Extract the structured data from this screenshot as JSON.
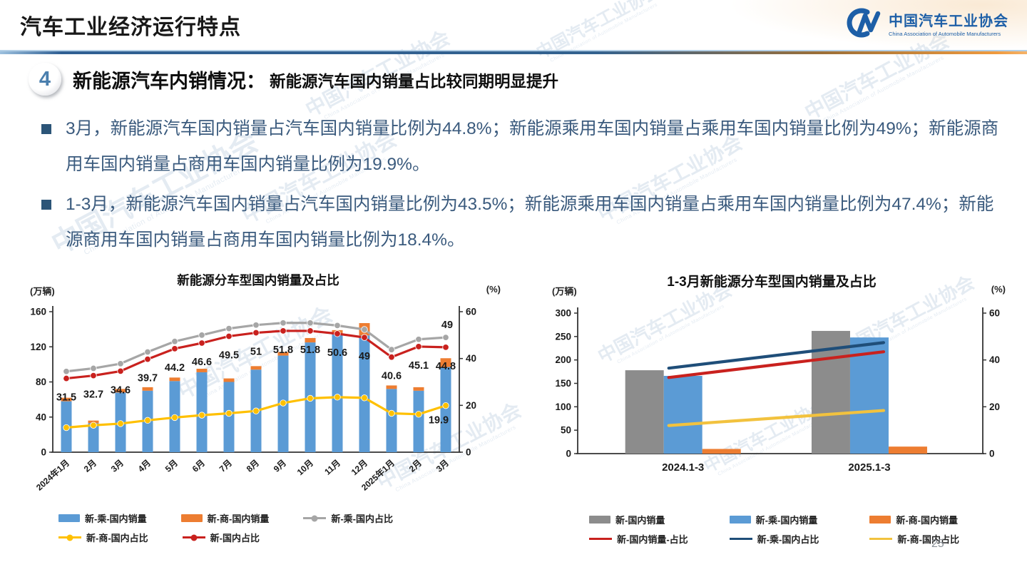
{
  "page": {
    "title": "汽车工业经济运行特点",
    "page_number": "25"
  },
  "logo": {
    "name_cn": "中国汽车工业协会",
    "name_en": "China Association of Automobile Manufacturers"
  },
  "watermark": {
    "text": "中国汽车工业协会",
    "subtext": "China Association of Automobile Manufacturers"
  },
  "section": {
    "number": "4",
    "heading": "新能源汽车内销情况：",
    "subheading": "新能源汽车国内销量占比较同期明显提升"
  },
  "bullets": [
    "3月，新能源汽车国内销量占汽车国内销量比例为44.8%；新能源乘用车国内销量占乘用车国内销量比例为49%；新能源商用车国内销量占商用车国内销量比例为19.9%。",
    "1-3月，新能源汽车国内销量占汽车国内销量比例为43.5%；新能源乘用车国内销量占乘用车国内销量比例为47.4%；新能源商用车国内销量占商用车国内销量比例为18.4%。"
  ],
  "colors": {
    "bar_blue": "#5b9bd5",
    "bar_orange": "#ed7d31",
    "bar_gray": "#8c8c8c",
    "line_gray": "#a6a6a6",
    "line_yellow": "#ffc000",
    "line_red": "#c9211e",
    "line_darkblue": "#1f4e79",
    "divider_blue": "#2f5f93",
    "divider_orange": "#ef9a3e",
    "logo_blue": "#1d5fa7",
    "body_text": "#3a5a7d"
  },
  "chart_data": [
    {
      "type": "bar+line",
      "title": "新能源分车型国内销量及占比",
      "left_axis_label": "(万辆)",
      "right_axis_label": "(%)",
      "left_axis_ticks": [
        0,
        40,
        80,
        120,
        160
      ],
      "right_axis_ticks": [
        0,
        20,
        40,
        60
      ],
      "left_axis_range": [
        0,
        160
      ],
      "right_axis_range": [
        0,
        60
      ],
      "grid": false,
      "legend_position": "bottom",
      "categories": [
        "2024年1月",
        "2月",
        "3月",
        "4月",
        "5月",
        "6月",
        "7月",
        "8月",
        "9月",
        "10月",
        "11月",
        "12月",
        "2025年1月",
        "2月",
        "3月"
      ],
      "bar_series": [
        {
          "name": "新-乘-国内销量",
          "color": "#5b9bd5",
          "stacked": true,
          "values": [
            58,
            33,
            68,
            70,
            81,
            91,
            80,
            94,
            110,
            125,
            134,
            133,
            72,
            70,
            97
          ]
        },
        {
          "name": "新-商-国内销量",
          "color": "#ed7d31",
          "stacked": true,
          "values": [
            4,
            3,
            4,
            4,
            4,
            4,
            4,
            4,
            4,
            5,
            5,
            14,
            4,
            4,
            10
          ]
        }
      ],
      "line_series": [
        {
          "name": "新-乘-国内占比",
          "color": "#a6a6a6",
          "values": [
            34.5,
            35.8,
            37.8,
            42.8,
            47.3,
            50.0,
            52.8,
            54.3,
            55.2,
            55.2,
            54.1,
            52.4,
            43.8,
            48.2,
            49
          ],
          "end_label": "49"
        },
        {
          "name": "新-商-国内占比",
          "color": "#ffc000",
          "values": [
            10.5,
            11.5,
            12.2,
            13.6,
            14.8,
            15.8,
            16.6,
            17.6,
            21.0,
            23.0,
            23.5,
            23.2,
            16.6,
            16.2,
            19.9
          ],
          "end_label": "19.9"
        },
        {
          "name": "新-国内占比",
          "color": "#c9211e",
          "values": [
            31.5,
            32.7,
            34.6,
            39.7,
            44.2,
            46.6,
            49.5,
            51,
            51.8,
            51.8,
            50.6,
            49,
            40.6,
            45.1,
            44.8
          ],
          "labels": [
            "31.5",
            "32.7",
            "34.6",
            "39.7",
            "44.2",
            "46.6",
            "49.5",
            "51",
            "51.8",
            "51.8",
            "50.6",
            "49",
            "40.6",
            "45.1",
            "44.8"
          ]
        }
      ]
    },
    {
      "type": "bar+line",
      "title": "1-3月新能源分车型国内销量及占比",
      "left_axis_label": "(万辆)",
      "right_axis_label": "(%)",
      "left_axis_ticks": [
        0,
        50,
        100,
        150,
        200,
        250,
        300
      ],
      "right_axis_ticks": [
        0,
        20,
        40,
        60
      ],
      "left_axis_range": [
        0,
        300
      ],
      "right_axis_range": [
        0,
        60
      ],
      "grid": false,
      "legend_position": "bottom",
      "categories": [
        "2024.1-3",
        "2025.1-3"
      ],
      "bar_series": [
        {
          "name": "新-国内销量",
          "color": "#8c8c8c",
          "values": [
            178,
            262
          ]
        },
        {
          "name": "新-乘-国内销量",
          "color": "#5b9bd5",
          "values": [
            166,
            248
          ]
        },
        {
          "name": "新-商-国内销量",
          "color": "#ed7d31",
          "values": [
            10,
            15
          ]
        }
      ],
      "line_series": [
        {
          "name": "新-国内销量-占比",
          "color": "#c9211e",
          "values": [
            32.5,
            43.5
          ]
        },
        {
          "name": "新-乘-国内占比",
          "color": "#1f4e79",
          "values": [
            36.5,
            47.4
          ]
        },
        {
          "name": "新-商-国内占比",
          "color": "#f2c23e",
          "values": [
            12,
            18.4
          ]
        }
      ]
    }
  ]
}
